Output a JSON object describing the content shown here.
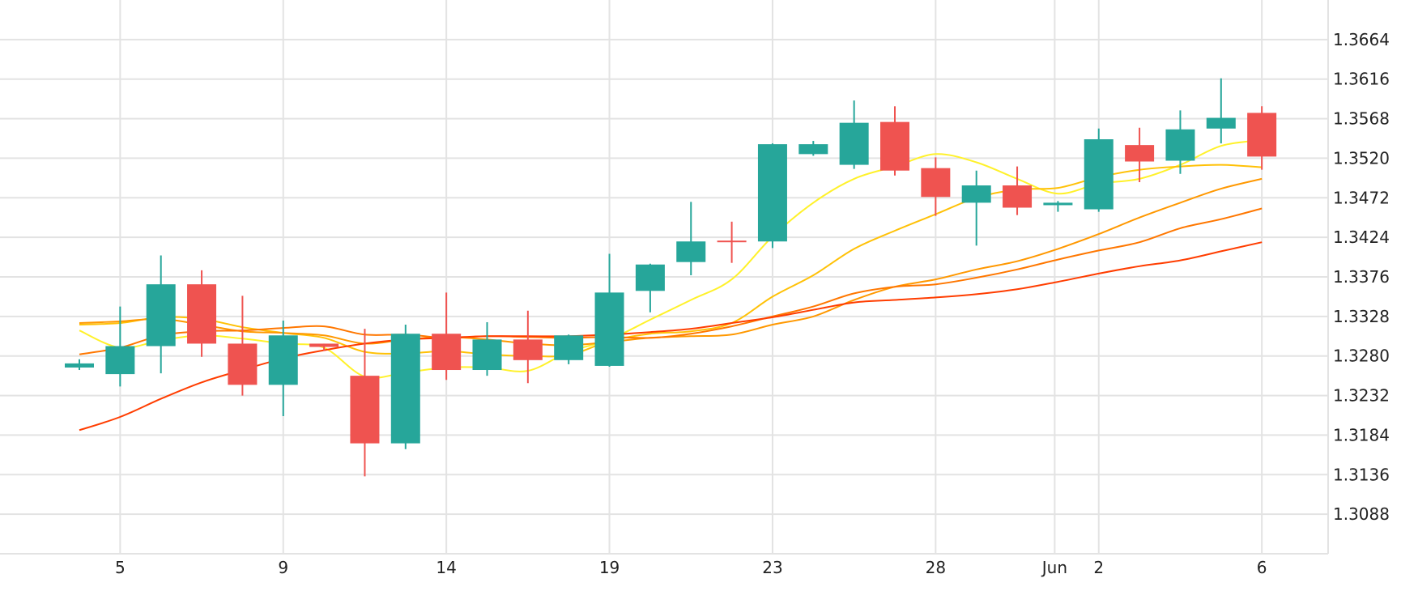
{
  "colors": {
    "up": "#26a69a",
    "down": "#ef5350",
    "grid": "#e3e3e3",
    "text": "#222222"
  },
  "chart_data": {
    "type": "candlestick",
    "x_labels": [
      {
        "index": 1,
        "label": "5"
      },
      {
        "index": 5,
        "label": "9"
      },
      {
        "index": 9,
        "label": "14"
      },
      {
        "index": 13,
        "label": "19"
      },
      {
        "index": 17,
        "label": "23"
      },
      {
        "index": 21,
        "label": "28"
      },
      {
        "index": 24,
        "label": "Jun"
      },
      {
        "index": 25,
        "label": "2"
      },
      {
        "index": 29,
        "label": "6"
      }
    ],
    "y_ticks": [
      "1.3664",
      "1.3616",
      "1.3568",
      "1.3520",
      "1.3472",
      "1.3424",
      "1.3376",
      "1.3328",
      "1.3280",
      "1.3232",
      "1.3184",
      "1.3136",
      "1.3088"
    ],
    "ylim": [
      1.304,
      1.3712
    ],
    "grid": true,
    "candles": [
      {
        "o": 1.3266,
        "h": 1.3276,
        "l": 1.3263,
        "c": 1.3271
      },
      {
        "o": 1.3258,
        "h": 1.334,
        "l": 1.3243,
        "c": 1.3292
      },
      {
        "o": 1.3292,
        "h": 1.3402,
        "l": 1.3259,
        "c": 1.3367
      },
      {
        "o": 1.3367,
        "h": 1.3384,
        "l": 1.3279,
        "c": 1.3295
      },
      {
        "o": 1.3295,
        "h": 1.3353,
        "l": 1.3232,
        "c": 1.3245
      },
      {
        "o": 1.3245,
        "h": 1.3323,
        "l": 1.3207,
        "c": 1.3305
      },
      {
        "o": 1.3295,
        "h": 1.3295,
        "l": 1.3286,
        "c": 1.3291
      },
      {
        "o": 1.3256,
        "h": 1.3313,
        "l": 1.3134,
        "c": 1.3174
      },
      {
        "o": 1.3174,
        "h": 1.3318,
        "l": 1.3167,
        "c": 1.3307
      },
      {
        "o": 1.3307,
        "h": 1.3357,
        "l": 1.3251,
        "c": 1.3263
      },
      {
        "o": 1.3263,
        "h": 1.3321,
        "l": 1.3256,
        "c": 1.33
      },
      {
        "o": 1.33,
        "h": 1.3335,
        "l": 1.3247,
        "c": 1.3275
      },
      {
        "o": 1.3275,
        "h": 1.3306,
        "l": 1.327,
        "c": 1.3305
      },
      {
        "o": 1.3268,
        "h": 1.3404,
        "l": 1.3267,
        "c": 1.3357
      },
      {
        "o": 1.3359,
        "h": 1.3392,
        "l": 1.3333,
        "c": 1.3391
      },
      {
        "o": 1.3394,
        "h": 1.3467,
        "l": 1.3378,
        "c": 1.3419
      },
      {
        "o": 1.342,
        "h": 1.3443,
        "l": 1.3393,
        "c": 1.3419
      },
      {
        "o": 1.3419,
        "h": 1.3538,
        "l": 1.3411,
        "c": 1.3537
      },
      {
        "o": 1.3525,
        "h": 1.3541,
        "l": 1.3523,
        "c": 1.3537
      },
      {
        "o": 1.3512,
        "h": 1.359,
        "l": 1.3507,
        "c": 1.3563
      },
      {
        "o": 1.3564,
        "h": 1.3583,
        "l": 1.3499,
        "c": 1.3505
      },
      {
        "o": 1.3508,
        "h": 1.3521,
        "l": 1.345,
        "c": 1.3473
      },
      {
        "o": 1.3466,
        "h": 1.3505,
        "l": 1.3414,
        "c": 1.3487
      },
      {
        "o": 1.3487,
        "h": 1.351,
        "l": 1.3451,
        "c": 1.346
      },
      {
        "o": 1.3463,
        "h": 1.3468,
        "l": 1.3455,
        "c": 1.3466
      },
      {
        "o": 1.3458,
        "h": 1.3556,
        "l": 1.3455,
        "c": 1.3543
      },
      {
        "o": 1.3536,
        "h": 1.3557,
        "l": 1.3491,
        "c": 1.3516
      },
      {
        "o": 1.3517,
        "h": 1.3578,
        "l": 1.3501,
        "c": 1.3555
      },
      {
        "o": 1.3556,
        "h": 1.3617,
        "l": 1.3538,
        "c": 1.3569
      },
      {
        "o": 1.3575,
        "h": 1.3583,
        "l": 1.3506,
        "c": 1.3522
      }
    ],
    "moving_averages": [
      {
        "color": "#fff12a",
        "start": 0,
        "values": [
          1.3311,
          1.329,
          1.3299,
          1.3305,
          1.3301,
          1.3295,
          1.329,
          1.3255,
          1.326,
          1.3266,
          1.3266,
          1.3262,
          1.3285,
          1.33,
          1.3324,
          1.3348,
          1.3373,
          1.3425,
          1.3466,
          1.3495,
          1.351,
          1.3525,
          1.3515,
          1.3495,
          1.3477,
          1.3489,
          1.3495,
          1.3512,
          1.3535,
          1.3542
        ]
      },
      {
        "color": "#ffc107",
        "start": 0,
        "values": [
          1.3318,
          1.332,
          1.3327,
          1.3325,
          1.3315,
          1.3308,
          1.3302,
          1.3285,
          1.3283,
          1.3286,
          1.3282,
          1.328,
          1.3281,
          1.3298,
          1.3307,
          1.331,
          1.332,
          1.3352,
          1.3378,
          1.341,
          1.3432,
          1.3452,
          1.3472,
          1.3482,
          1.3484,
          1.3497,
          1.3506,
          1.351,
          1.3512,
          1.3509
        ]
      },
      {
        "color": "#ff9800",
        "start": 0,
        "values": [
          1.332,
          1.3322,
          1.3325,
          1.3318,
          1.331,
          1.3308,
          1.3305,
          1.3295,
          1.33,
          1.3303,
          1.33,
          1.3295,
          1.3293,
          1.3297,
          1.3302,
          1.3304,
          1.3306,
          1.3318,
          1.3328,
          1.3348,
          1.3364,
          1.3373,
          1.3385,
          1.3395,
          1.341,
          1.3428,
          1.3448,
          1.3466,
          1.3483,
          1.3495
        ]
      },
      {
        "color": "#ff7700",
        "start": 0,
        "values": [
          1.3282,
          1.329,
          1.3305,
          1.331,
          1.3311,
          1.3314,
          1.3316,
          1.3306,
          1.3306,
          1.3302,
          1.3304,
          1.3303,
          1.3302,
          1.3303,
          1.3302,
          1.3307,
          1.3316,
          1.3328,
          1.334,
          1.3356,
          1.3364,
          1.3367,
          1.3375,
          1.3385,
          1.3397,
          1.3408,
          1.3418,
          1.3435,
          1.3446,
          1.3459
        ]
      },
      {
        "color": "#ff3d00",
        "start": 0,
        "values": [
          1.319,
          1.3206,
          1.3228,
          1.3248,
          1.3263,
          1.3277,
          1.3287,
          1.3295,
          1.33,
          1.3302,
          1.3304,
          1.3304,
          1.3304,
          1.3306,
          1.3309,
          1.3313,
          1.332,
          1.3327,
          1.3336,
          1.3345,
          1.3348,
          1.3351,
          1.3355,
          1.3361,
          1.337,
          1.338,
          1.3389,
          1.3396,
          1.3407,
          1.3418
        ]
      }
    ]
  }
}
